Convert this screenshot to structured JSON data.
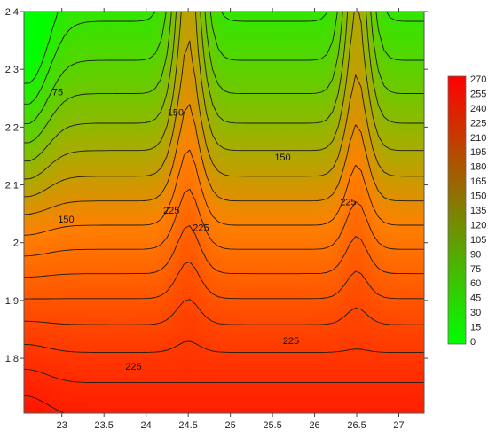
{
  "chart_data": {
    "type": "heatmap",
    "subtype": "filled contour",
    "title": "",
    "xlabel": "",
    "ylabel": "",
    "xlim": [
      22.55,
      27.3
    ],
    "ylim": [
      1.705,
      2.4
    ],
    "x_ticks": [
      "23",
      "23.5",
      "24",
      "24.5",
      "25",
      "25.5",
      "26",
      "26.5",
      "27"
    ],
    "y_ticks": [
      "1.8",
      "1.9",
      "2",
      "2.1",
      "2.2",
      "2.3",
      "2.4"
    ],
    "color_scale": {
      "min": 0,
      "max": 270,
      "low_color": "#00ff00",
      "high_color": "#ff0000",
      "levels": [
        "270",
        "255",
        "240",
        "225",
        "210",
        "195",
        "180",
        "165",
        "150",
        "135",
        "120",
        "105",
        "90",
        "75",
        "60",
        "45",
        "30",
        "15",
        "0"
      ]
    },
    "contour_labels": [
      {
        "text": "75",
        "x": 22.95,
        "y": 2.255
      },
      {
        "text": "150",
        "x": 24.35,
        "y": 2.22
      },
      {
        "text": "150",
        "x": 25.62,
        "y": 2.142
      },
      {
        "text": "150",
        "x": 23.05,
        "y": 2.035
      },
      {
        "text": "225",
        "x": 24.3,
        "y": 2.05
      },
      {
        "text": "225",
        "x": 24.65,
        "y": 2.02
      },
      {
        "text": "225",
        "x": 26.4,
        "y": 2.065
      },
      {
        "text": "225",
        "x": 25.72,
        "y": 1.825
      },
      {
        "text": "225",
        "x": 23.85,
        "y": 1.78
      }
    ],
    "legend_position": "right"
  }
}
